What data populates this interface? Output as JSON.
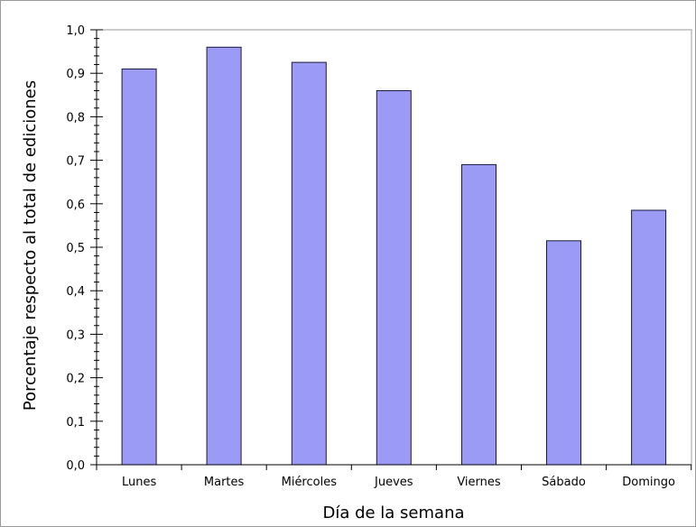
{
  "chart_data": {
    "type": "bar",
    "categories": [
      "Lunes",
      "Martes",
      "Miércoles",
      "Jueves",
      "Viernes",
      "Sábado",
      "Domingo"
    ],
    "values": [
      0.91,
      0.96,
      0.925,
      0.86,
      0.69,
      0.515,
      0.585
    ],
    "title": "",
    "xlabel": "Día de la semana",
    "ylabel": "Porcentaje respecto al total de ediciones",
    "ylim": [
      0,
      1
    ],
    "yticks": [
      "0,0",
      "0,1",
      "0,2",
      "0,3",
      "0,4",
      "0,5",
      "0,6",
      "0,7",
      "0,8",
      "0,9",
      "1,0"
    ],
    "grid": false,
    "legend": "none",
    "colors": {
      "bar_fill": "#9b9bf5",
      "bar_stroke": "#1a1a3a",
      "axis": "#000000",
      "frame": "#999999"
    }
  }
}
